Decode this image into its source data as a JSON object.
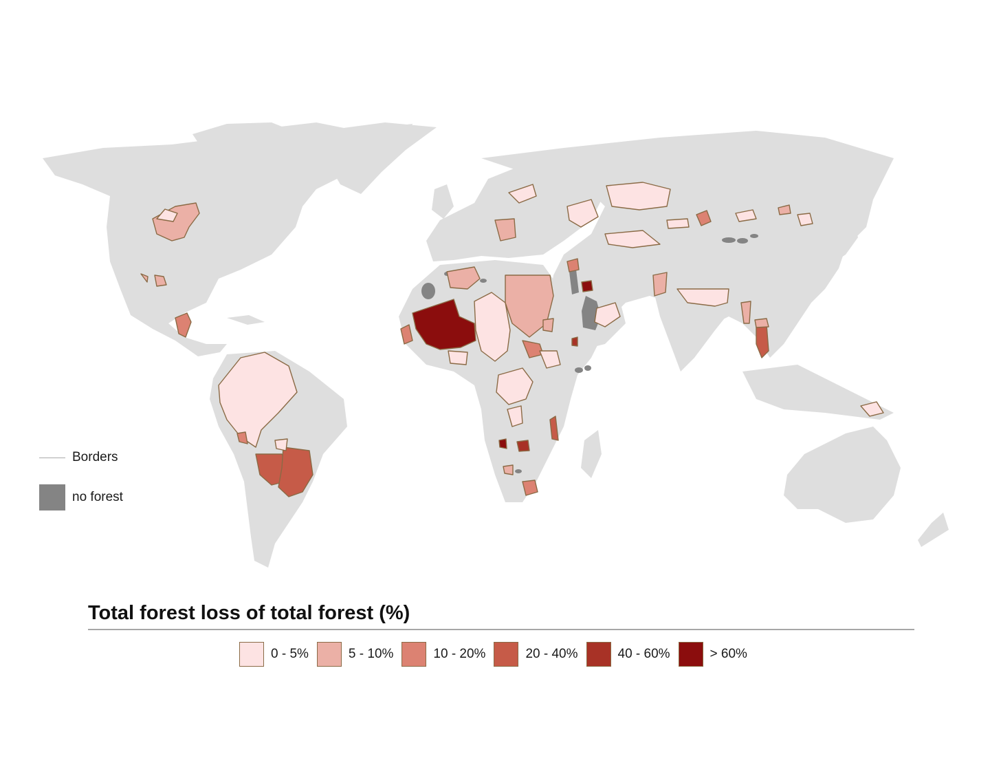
{
  "map": {
    "title": "Total forest loss of total forest (%)",
    "land_color": "#dedede",
    "no_forest_color": "#848484",
    "region_outline_color": "#8a6a45"
  },
  "legend": {
    "borders_label": "Borders",
    "no_forest_label": "no forest",
    "classes": [
      {
        "label": "0 - 5%",
        "color": "#fde3e3"
      },
      {
        "label": "5 - 10%",
        "color": "#ebb0a6"
      },
      {
        "label": "10 - 20%",
        "color": "#dc8272"
      },
      {
        "label": "20 - 40%",
        "color": "#c65b48"
      },
      {
        "label": "40 - 60%",
        "color": "#a83226"
      },
      {
        "label": "> 60%",
        "color": "#8b0d0d"
      }
    ]
  }
}
